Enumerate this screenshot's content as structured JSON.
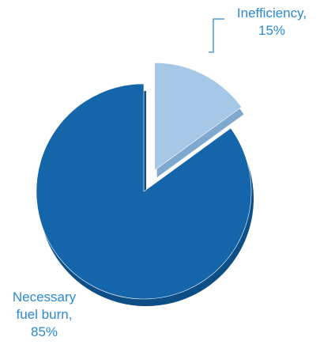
{
  "chart_data": {
    "type": "pie",
    "title": "",
    "exploded_slice": "Inefficiency",
    "slices": [
      {
        "label_lines": [
          "Inefficiency,",
          "15%"
        ],
        "category": "Inefficiency",
        "value": 15,
        "color": "#a6c8e6",
        "side_color": "#7ea8cd"
      },
      {
        "label_lines": [
          "Necessary",
          "fuel burn,",
          "85%"
        ],
        "category": "Necessary fuel burn",
        "value": 85,
        "color": "#1565ab",
        "side_color": "#0d4e87"
      }
    ],
    "label_color": "#2b8ad0",
    "leader_line_color": "#2b8ad0"
  }
}
